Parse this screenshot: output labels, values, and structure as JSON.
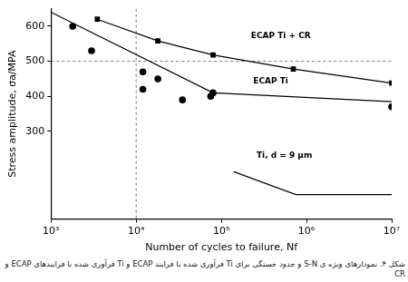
{
  "chart_data": {
    "type": "scatter",
    "x_label": "Number of cycles to failure, Nf",
    "y_label": "Stress amplitude, σa/MPA",
    "caption": "شکل ۴. نمودارهای ویژه ی S-N و حدود خستگی برای Ti فرآوری شده با فرایند ECAP و Ti فرآوری شده با فرایندهای ECAP و CR",
    "log": "x",
    "grid": false,
    "xlim": [
      1000,
      10000000
    ],
    "xticks": [
      {
        "value": 1000,
        "label": "10³"
      },
      {
        "value": 10000,
        "label": "10⁴"
      },
      {
        "value": 100000,
        "label": "10⁵"
      },
      {
        "value": 1000000,
        "label": "10⁶"
      },
      {
        "value": 10000000,
        "label": "10⁷"
      }
    ],
    "ylim": [
      50,
      650
    ],
    "yticks": [
      300,
      400,
      500,
      600
    ],
    "reference_x": [
      10000
    ],
    "reference_y": [
      500
    ],
    "series": [
      {
        "color": "#000000",
        "marker": "square",
        "line_style": "solid",
        "x": [
          3500,
          18000,
          80000,
          700000,
          10000000
        ],
        "values": [
          620,
          558,
          518,
          478,
          438
        ]
      },
      {
        "color": "#000000",
        "marker": "circle",
        "line_style": "none",
        "x": [
          1800,
          3000,
          12000,
          12000,
          18000,
          35000,
          75000,
          80000,
          10000000
        ],
        "values": [
          600,
          530,
          470,
          420,
          450,
          390,
          400,
          410,
          370
        ]
      },
      {
        "color": "#000000",
        "marker": "none",
        "line_style": "solid",
        "x": [
          1000,
          80000,
          10000000
        ],
        "values": [
          640,
          410,
          385
        ]
      },
      {
        "color": "#000000",
        "marker": "none",
        "line_style": "solid",
        "x": [
          140000,
          750000,
          10000000
        ],
        "values": [
          185,
          120,
          120
        ]
      }
    ],
    "annotations": [
      {
        "text": "ECAP Ti + CR",
        "x": 500000,
        "y": 572
      },
      {
        "text": "ECAP Ti",
        "x": 380000,
        "y": 443
      },
      {
        "text": "Ti, d = 9 μm",
        "x": 550000,
        "y": 232
      }
    ]
  }
}
